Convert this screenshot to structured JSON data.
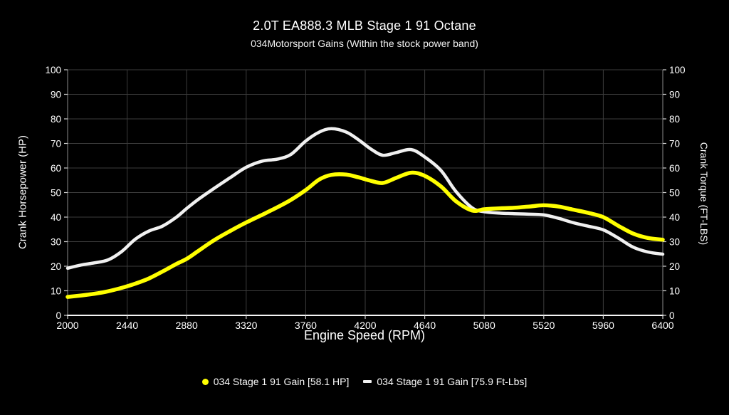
{
  "page": {
    "background": "#000000",
    "text_color": "#ffffff"
  },
  "chart_data": {
    "type": "line",
    "title": "2.0T EA888.3 MLB Stage 1 91 Octane",
    "subtitle": "034Motorsport Gains (Within the stock power band)",
    "xlabel": "Engine Speed (RPM)",
    "ylabel_left": "Crank Horsepower (HP)",
    "ylabel_right": "Crank Torque (FT-LBS)",
    "xlim": [
      2000,
      6400
    ],
    "ylim_left": [
      0,
      100
    ],
    "ylim_right": [
      0,
      100
    ],
    "x_ticks": [
      2000,
      2440,
      2880,
      3320,
      3760,
      4200,
      4640,
      5080,
      5520,
      5960,
      6400
    ],
    "y_ticks": [
      0,
      10,
      20,
      30,
      40,
      50,
      60,
      70,
      80,
      90,
      100
    ],
    "grid": true,
    "gridline_color": "#3d3d3d",
    "spine_bottom_color": "#f5f5f5",
    "spine_side_color": "#8a8a8a",
    "tick_color": "#d0d0d0",
    "legend_position": "bottom-center",
    "x": [
      2000,
      2100,
      2200,
      2300,
      2400,
      2500,
      2600,
      2700,
      2800,
      2880,
      2960,
      3080,
      3200,
      3320,
      3440,
      3550,
      3650,
      3760,
      3860,
      3950,
      4060,
      4150,
      4240,
      4330,
      4430,
      4540,
      4640,
      4760,
      4870,
      4990,
      5080,
      5200,
      5300,
      5410,
      5520,
      5630,
      5740,
      5850,
      5960,
      6070,
      6180,
      6290,
      6400
    ],
    "series": [
      {
        "name": "034 Stage 1 91 Gain [58.1 HP]",
        "axis": "left",
        "units": "HP",
        "peak_value": 58.1,
        "color": "#ffff00",
        "marker": "circle",
        "line_width": 5.5,
        "values": [
          7.5,
          8.1,
          8.8,
          9.8,
          11.2,
          12.9,
          15.0,
          17.8,
          20.8,
          23.0,
          26.0,
          30.5,
          34.3,
          37.8,
          41.0,
          44.0,
          47.0,
          51.0,
          55.3,
          57.2,
          57.3,
          56.2,
          54.8,
          53.9,
          56.0,
          58.1,
          56.8,
          52.5,
          46.5,
          42.7,
          43.2,
          43.6,
          43.8,
          44.3,
          44.8,
          44.3,
          43.0,
          41.7,
          40.0,
          36.5,
          33.3,
          31.5,
          30.8
        ]
      },
      {
        "name": "034 Stage 1 91 Gain [75.9 Ft-Lbs]",
        "axis": "right",
        "units": "Ft-Lbs",
        "peak_value": 75.9,
        "color": "#f0f0f0",
        "marker": "dash",
        "line_width": 4.5,
        "values": [
          19.2,
          20.5,
          21.4,
          22.6,
          26.0,
          31.0,
          34.3,
          36.3,
          39.8,
          43.5,
          47.0,
          51.6,
          56.0,
          60.3,
          62.8,
          63.6,
          65.5,
          71.0,
          74.6,
          76.0,
          74.6,
          71.5,
          67.8,
          65.2,
          66.3,
          67.5,
          64.5,
          59.0,
          50.5,
          43.8,
          42.2,
          41.6,
          41.4,
          41.2,
          40.9,
          39.5,
          37.7,
          36.3,
          34.8,
          31.5,
          27.8,
          25.8,
          24.9
        ]
      }
    ]
  }
}
